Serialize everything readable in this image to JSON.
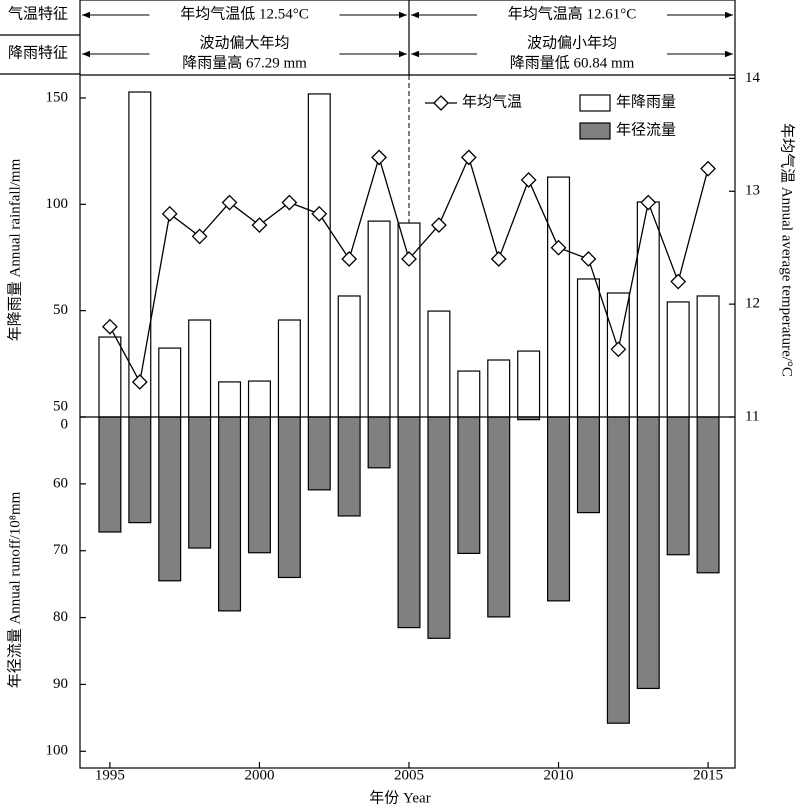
{
  "chart_data": {
    "type": "bar",
    "header": [
      {
        "label": "气温特征",
        "left": [
          "年均气温低 12.54°C"
        ],
        "right": [
          "年均气温高 12.61°C"
        ]
      },
      {
        "label": "降雨特征",
        "left": [
          "波动偏大年均",
          "降雨量高 67.29 mm"
        ],
        "right": [
          "波动偏小年均",
          "降雨量低 60.84 mm"
        ]
      }
    ],
    "xlabel": "年份 Year",
    "ylabel": "年降雨量 Annual rainfall/mm",
    "y3label": "年径流量 Annual runoff/10⁸mm",
    "y2label": "年均气温 Annual average temperature/°C",
    "x": [
      1995,
      1996,
      1997,
      1998,
      1999,
      2000,
      2001,
      2002,
      2003,
      2004,
      2005,
      2006,
      2007,
      2008,
      2009,
      2010,
      2011,
      2012,
      2013,
      2014,
      2015
    ],
    "xlim": [
      1994,
      2015.9
    ],
    "xticks": [
      1995,
      2000,
      2005,
      2010,
      2015
    ],
    "ylim": [
      0,
      160.8
    ],
    "yticks": [
      0,
      50,
      100,
      150
    ],
    "y3lim": [
      50,
      102.5
    ],
    "y3ticks": [
      50,
      60,
      70,
      80,
      90,
      100
    ],
    "y2lim": [
      11,
      14.03
    ],
    "y2ticks": [
      11,
      12,
      13,
      14
    ],
    "series": [
      {
        "name": "年均气温",
        "color": "#000000",
        "axis": "y2",
        "values": [
          11.8,
          11.31,
          12.8,
          12.6,
          12.9,
          12.7,
          12.9,
          12.8,
          12.4,
          13.3,
          12.4,
          12.7,
          13.3,
          12.4,
          13.1,
          12.5,
          12.4,
          11.6,
          12.9,
          12.2,
          13.2
        ]
      },
      {
        "name": "年降雨量",
        "color": "#ffffff",
        "axis": "y",
        "values": [
          37.6,
          152.8,
          32.4,
          45.6,
          16.5,
          16.9,
          45.6,
          151.9,
          56.9,
          92.1,
          91.2,
          49.8,
          21.6,
          26.8,
          31,
          112.8,
          64.9,
          58.3,
          101.1,
          54.1,
          56.9
        ]
      },
      {
        "name": "年径流量",
        "color": "#808080",
        "axis": "y3",
        "values": [
          67.2,
          65.8,
          74.5,
          69.6,
          79,
          70.3,
          74,
          60.9,
          64.8,
          57.6,
          81.5,
          83.1,
          70.4,
          79.9,
          50.4,
          77.5,
          64.3,
          95.8,
          90.6,
          70.6,
          73.3
        ]
      }
    ]
  }
}
